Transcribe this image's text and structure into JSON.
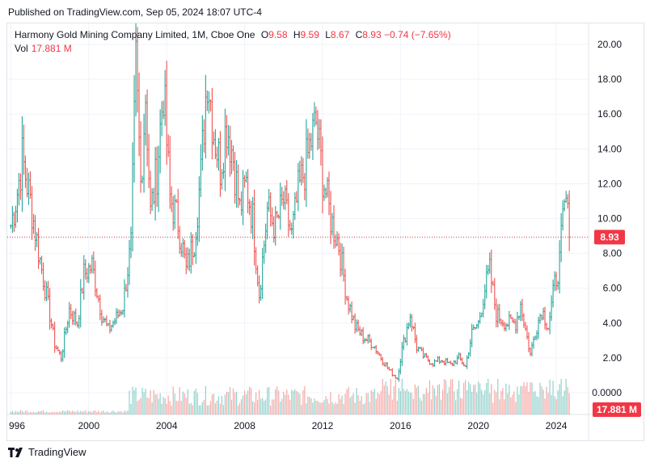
{
  "header": {
    "published": "Published on TradingView.com, Sep 05, 2024 18:07 UTC-4"
  },
  "legend": {
    "symbol": "Harmony Gold Mining Company Limited, 1M, Cboe One",
    "o_label": "O",
    "o_value": "9.58",
    "h_label": "H",
    "h_value": "9.59",
    "l_label": "L",
    "l_value": "8.67",
    "c_label": "C",
    "c_value": "8.93",
    "change": "−0.74 (−7.65%)",
    "vol_label": "Vol",
    "vol_value": "17.881 M"
  },
  "footer": {
    "brand": "TradingView"
  },
  "colors": {
    "up": "#26a69a",
    "down": "#ef5350",
    "price_line": "#f23645",
    "grid": "#f0f3fa"
  },
  "chart_data": {
    "type": "ohlc",
    "y_ticks": [
      "20.00",
      "18.00",
      "16.00",
      "14.00",
      "12.00",
      "10.00",
      "8.00",
      "6.00",
      "4.00",
      "2.00",
      "0.0000"
    ],
    "x_ticks": [
      "996",
      "2000",
      "2004",
      "2008",
      "2012",
      "2016",
      "2020",
      "2024"
    ],
    "ylim": [
      0,
      20.5
    ],
    "last_price_label": "8.93",
    "last_volume_label": "17.881 M",
    "monthly_close_anchors": [
      [
        "1996-01",
        9.6
      ],
      [
        "1996-05",
        11.5
      ],
      [
        "1996-08",
        13.5
      ],
      [
        "1997-01",
        11.0
      ],
      [
        "1997-07",
        7.6
      ],
      [
        "1998-01",
        4.5
      ],
      [
        "1998-04",
        2.8
      ],
      [
        "1998-08",
        2.0
      ],
      [
        "1999-01",
        4.8
      ],
      [
        "1999-06",
        4.0
      ],
      [
        "1999-10",
        6.8
      ],
      [
        "2000-03",
        7.3
      ],
      [
        "2000-09",
        4.5
      ],
      [
        "2001-01",
        3.6
      ],
      [
        "2001-06",
        4.3
      ],
      [
        "2001-10",
        5.0
      ],
      [
        "2002-03",
        8.5
      ],
      [
        "2002-06",
        18.7
      ],
      [
        "2002-09",
        12.0
      ],
      [
        "2002-12",
        17.2
      ],
      [
        "2003-03",
        10.3
      ],
      [
        "2003-07",
        12.8
      ],
      [
        "2003-11",
        17.5
      ],
      [
        "2004-03",
        11.2
      ],
      [
        "2004-08",
        9.8
      ],
      [
        "2004-11",
        8.2
      ],
      [
        "2005-01",
        7.0
      ],
      [
        "2005-06",
        8.8
      ],
      [
        "2005-10",
        12.5
      ],
      [
        "2006-02",
        18.5
      ],
      [
        "2006-06",
        15.0
      ],
      [
        "2006-10",
        13.0
      ],
      [
        "2007-02",
        15.5
      ],
      [
        "2007-06",
        13.5
      ],
      [
        "2007-10",
        10.5
      ],
      [
        "2008-02",
        12.0
      ],
      [
        "2008-06",
        10.0
      ],
      [
        "2008-10",
        5.7
      ],
      [
        "2009-03",
        10.5
      ],
      [
        "2009-08",
        9.5
      ],
      [
        "2010-01",
        11.0
      ],
      [
        "2010-06",
        9.0
      ],
      [
        "2010-10",
        11.5
      ],
      [
        "2011-03",
        13.2
      ],
      [
        "2011-06",
        14.5
      ],
      [
        "2011-09",
        15.5
      ],
      [
        "2012-01",
        12.5
      ],
      [
        "2012-06",
        10.0
      ],
      [
        "2012-11",
        8.5
      ],
      [
        "2013-04",
        5.5
      ],
      [
        "2013-09",
        3.8
      ],
      [
        "2014-02",
        3.2
      ],
      [
        "2014-08",
        2.8
      ],
      [
        "2015-01",
        2.0
      ],
      [
        "2015-06",
        1.3
      ],
      [
        "2015-11",
        0.8
      ],
      [
        "2016-02",
        2.5
      ],
      [
        "2016-07",
        4.5
      ],
      [
        "2016-11",
        2.6
      ],
      [
        "2017-04",
        2.0
      ],
      [
        "2017-09",
        1.7
      ],
      [
        "2018-02",
        1.9
      ],
      [
        "2018-08",
        1.6
      ],
      [
        "2019-01",
        2.0
      ],
      [
        "2019-05",
        1.5
      ],
      [
        "2019-09",
        3.4
      ],
      [
        "2020-01",
        4.0
      ],
      [
        "2020-05",
        6.0
      ],
      [
        "2020-08",
        7.0
      ],
      [
        "2020-12",
        4.5
      ],
      [
        "2021-06",
        4.0
      ],
      [
        "2021-12",
        4.0
      ],
      [
        "2022-03",
        5.1
      ],
      [
        "2022-09",
        2.2
      ],
      [
        "2022-12",
        3.5
      ],
      [
        "2023-04",
        4.8
      ],
      [
        "2023-08",
        3.8
      ],
      [
        "2023-12",
        6.2
      ],
      [
        "2024-03",
        7.5
      ],
      [
        "2024-05",
        9.8
      ],
      [
        "2024-07",
        11.0
      ],
      [
        "2024-09",
        8.93
      ]
    ]
  }
}
